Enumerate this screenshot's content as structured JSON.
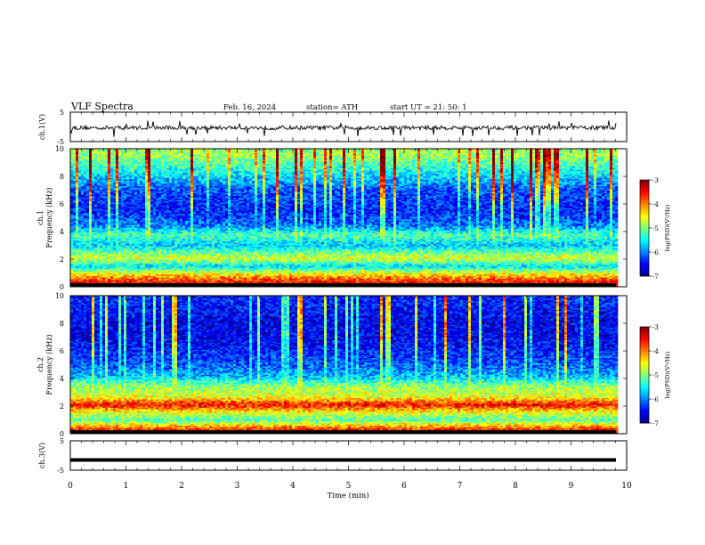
{
  "header": {
    "title": "VLF  Spectra",
    "date": "Feb. 16, 2024",
    "station": "station= ATH",
    "start": "start  UT  =    21: 50: 1"
  },
  "chart_data": [
    {
      "type": "line",
      "panel": "ch1-waveform",
      "ylabel": "ch.1(V)",
      "ylim": [
        -5,
        5
      ],
      "yticks": [
        "5",
        "-5"
      ],
      "xlim": [
        0,
        10
      ],
      "note": "noisy waveform around 0 V with spikes",
      "series": [
        {
          "values_approx_range": [
            -1.5,
            0.8
          ]
        }
      ]
    },
    {
      "type": "heatmap",
      "panel": "ch1-spectrogram",
      "ylabel": "ch.1\nFrequency  (kHz)",
      "ylabel_line1": "ch.1",
      "ylabel_line2": "Frequency  (kHz)",
      "ylim": [
        0,
        10
      ],
      "yticks": [
        "0",
        "2",
        "4",
        "6",
        "8",
        "10"
      ],
      "xlim": [
        0,
        10
      ],
      "colorbar": {
        "label": "log(PSD)(V²/Hz)",
        "range": [
          -7,
          -3
        ],
        "ticks": [
          "-3",
          "-4",
          "-5",
          "-6",
          "-7"
        ]
      },
      "bands_log_psd": [
        {
          "freq": 0.3,
          "level": -3.5
        },
        {
          "freq": 0.8,
          "level": -4.2
        },
        {
          "freq": 1.5,
          "level": -5.6
        },
        {
          "freq": 2.1,
          "level": -4.6
        },
        {
          "freq": 3.0,
          "level": -5.7
        },
        {
          "freq": 3.8,
          "level": -5.2
        },
        {
          "freq": 4.4,
          "level": -6.0
        },
        {
          "freq": 5.5,
          "level": -6.4
        },
        {
          "freq": 7.0,
          "level": -6.2
        },
        {
          "freq": 8.5,
          "level": -5.4
        },
        {
          "freq": 9.5,
          "level": -4.9
        }
      ]
    },
    {
      "type": "heatmap",
      "panel": "ch2-spectrogram",
      "ylabel_line1": "ch.2",
      "ylabel_line2": "Frequency  (kHz)",
      "ylim": [
        0,
        10
      ],
      "yticks": [
        "0",
        "2",
        "4",
        "6",
        "8",
        "10"
      ],
      "xlim": [
        0,
        10
      ],
      "colorbar": {
        "label": "log(PSD)(V²/Hz)",
        "range": [
          -7,
          -3
        ],
        "ticks": [
          "-3",
          "-4",
          "-5",
          "-6",
          "-7"
        ]
      },
      "bands_log_psd": [
        {
          "freq": 0.3,
          "level": -3.6
        },
        {
          "freq": 1.0,
          "level": -5.2
        },
        {
          "freq": 1.6,
          "level": -4.5
        },
        {
          "freq": 2.1,
          "level": -3.5
        },
        {
          "freq": 2.7,
          "level": -4.6
        },
        {
          "freq": 3.4,
          "level": -4.9
        },
        {
          "freq": 4.2,
          "level": -5.8
        },
        {
          "freq": 5.2,
          "level": -6.2
        },
        {
          "freq": 6.5,
          "level": -6.5
        },
        {
          "freq": 8.0,
          "level": -6.6
        },
        {
          "freq": 9.5,
          "level": -6.4
        }
      ]
    },
    {
      "type": "line",
      "panel": "ch3-waveform",
      "ylabel": "ch.3(V)",
      "ylim": [
        -5,
        5
      ],
      "yticks": [
        "5",
        "-5"
      ],
      "xlim": [
        0,
        10
      ],
      "xlabel": "Time  (min)",
      "xticks": [
        "0",
        "1",
        "2",
        "3",
        "4",
        "5",
        "6",
        "7",
        "8",
        "9",
        "10"
      ],
      "note": "flat thick line near -1.5 V",
      "series": [
        {
          "level": -1.5
        }
      ]
    }
  ]
}
